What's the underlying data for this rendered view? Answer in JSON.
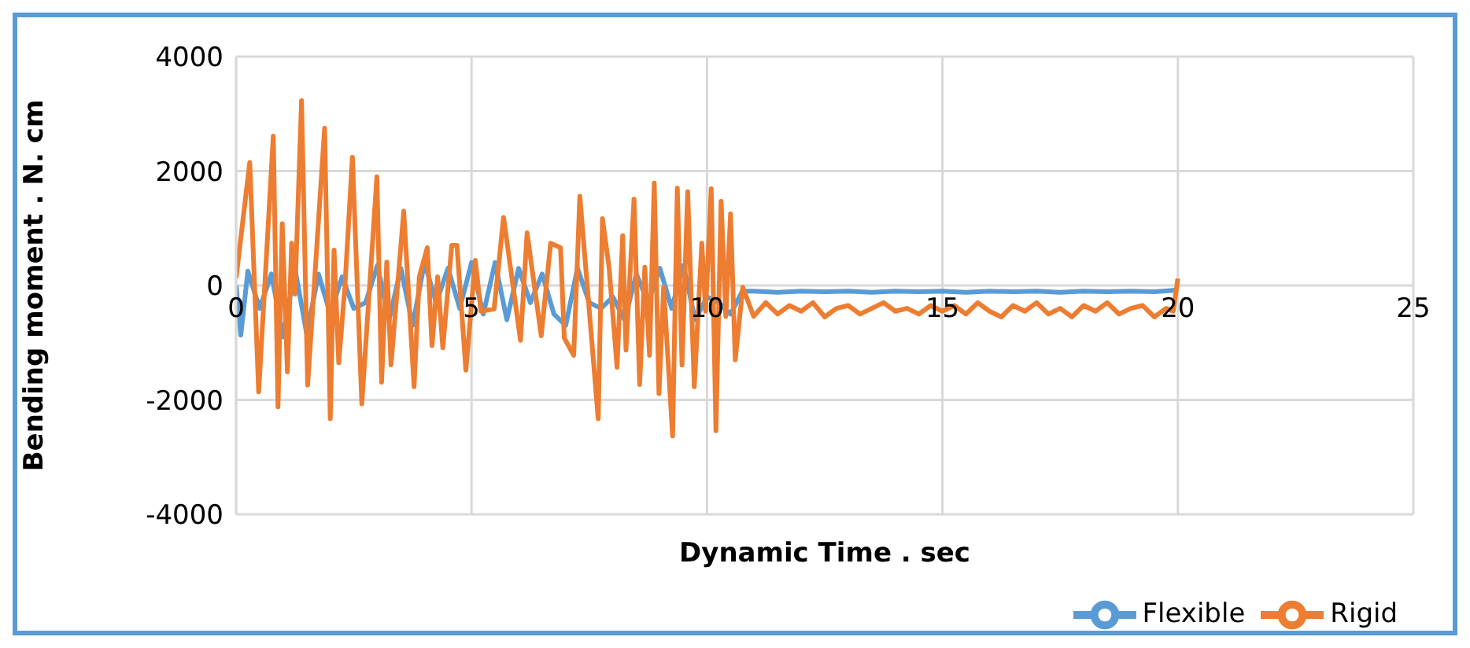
{
  "chart_data": {
    "type": "line",
    "xlabel": "Dynamic Time . sec",
    "ylabel": "Bending moment . N. cm",
    "xlim": [
      0,
      25
    ],
    "xticks": [
      0,
      5,
      10,
      15,
      20,
      25
    ],
    "ylim": [
      -4000,
      4000
    ],
    "yticks": [
      -4000,
      -2000,
      0,
      2000,
      4000
    ],
    "grid": true,
    "legend": "bottom right",
    "marker": "none",
    "line_style": "solid",
    "series": [
      {
        "name": "Flexible",
        "color": "#5b9bd5",
        "x": [
          0,
          0.1,
          0.25,
          0.5,
          0.75,
          1.0,
          1.25,
          1.5,
          1.75,
          2.0,
          2.25,
          2.5,
          2.75,
          3.0,
          3.25,
          3.5,
          3.75,
          4.0,
          4.25,
          4.5,
          4.75,
          5.0,
          5.25,
          5.5,
          5.75,
          6.0,
          6.25,
          6.5,
          6.75,
          7.0,
          7.25,
          7.5,
          7.75,
          8.0,
          8.25,
          8.5,
          8.75,
          9.0,
          9.25,
          9.5,
          9.75,
          10.0,
          10.25,
          10.5,
          10.75,
          11,
          11.5,
          12,
          12.5,
          13,
          13.5,
          14,
          14.5,
          15,
          15.5,
          16,
          16.5,
          17,
          17.5,
          18,
          18.5,
          19,
          19.5,
          20
        ],
        "values": [
          0,
          -870,
          250,
          -400,
          200,
          -900,
          300,
          -850,
          200,
          -500,
          150,
          -400,
          -300,
          350,
          -600,
          300,
          -700,
          400,
          -300,
          300,
          -400,
          400,
          -500,
          400,
          -600,
          300,
          -300,
          200,
          -500,
          -700,
          300,
          -300,
          -400,
          -200,
          -600,
          200,
          -300,
          300,
          -400,
          350,
          -600,
          -200,
          -300,
          -500,
          -100,
          -100,
          -120,
          -100,
          -110,
          -100,
          -120,
          -100,
          -110,
          -100,
          -120,
          -100,
          -110,
          -100,
          -120,
          -100,
          -110,
          -100,
          -110,
          -80
        ]
      },
      {
        "name": "Rigid",
        "color": "#ed7d31",
        "x": [
          0,
          0.29,
          0.48,
          0.79,
          0.89,
          0.98,
          1.09,
          1.18,
          1.25,
          1.39,
          1.52,
          1.88,
          2.0,
          2.08,
          2.18,
          2.31,
          2.47,
          2.67,
          2.99,
          3.09,
          3.2,
          3.29,
          3.56,
          3.78,
          3.89,
          4.06,
          4.16,
          4.28,
          4.39,
          4.58,
          4.69,
          4.88,
          5.08,
          5.2,
          5.48,
          5.68,
          6.04,
          6.18,
          6.48,
          6.68,
          6.89,
          6.97,
          7.17,
          7.3,
          7.69,
          7.78,
          7.92,
          8.09,
          8.21,
          8.28,
          8.45,
          8.57,
          8.68,
          8.78,
          8.88,
          8.98,
          9.08,
          9.27,
          9.37,
          9.47,
          9.59,
          9.73,
          9.89,
          9.97,
          10.09,
          10.19,
          10.3,
          10.4,
          10.5,
          10.6,
          10.76,
          10.99,
          11.25,
          11.5,
          11.75,
          12,
          12.25,
          12.5,
          12.75,
          13,
          13.25,
          13.5,
          13.75,
          14,
          14.25,
          14.5,
          14.75,
          15,
          15.25,
          15.5,
          15.75,
          16,
          16.25,
          16.5,
          16.75,
          17,
          17.25,
          17.5,
          17.75,
          18,
          18.25,
          18.5,
          18.75,
          19,
          19.25,
          19.5,
          19.75,
          19.9,
          20
        ],
        "values": [
          130,
          2150,
          -1860,
          2610,
          -2120,
          1080,
          -1510,
          740,
          -150,
          3230,
          -1740,
          2750,
          -2330,
          620,
          -1350,
          -30,
          2240,
          -2070,
          1900,
          -1690,
          410,
          -1390,
          1300,
          -1770,
          150,
          660,
          -1050,
          150,
          -1090,
          700,
          700,
          -1480,
          440,
          -450,
          -410,
          1190,
          -960,
          920,
          -880,
          740,
          660,
          -920,
          -1220,
          1560,
          -2330,
          1170,
          320,
          -1430,
          870,
          -1130,
          1510,
          -1730,
          320,
          -1220,
          1790,
          -1890,
          -30,
          -2630,
          1700,
          -1390,
          1640,
          -1770,
          740,
          -450,
          1690,
          -2540,
          1470,
          -540,
          1250,
          -1300,
          -30,
          -540,
          -300,
          -500,
          -350,
          -450,
          -300,
          -550,
          -400,
          -350,
          -500,
          -400,
          -300,
          -450,
          -400,
          -500,
          -350,
          -450,
          -350,
          -500,
          -300,
          -450,
          -550,
          -350,
          -450,
          -300,
          -500,
          -400,
          -550,
          -350,
          -450,
          -300,
          -500,
          -400,
          -350,
          -550,
          -400,
          -450,
          120
        ]
      }
    ]
  }
}
